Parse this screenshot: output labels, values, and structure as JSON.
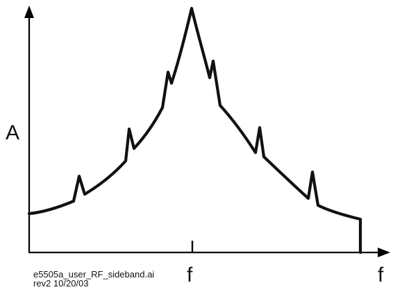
{
  "diagram": {
    "y_axis_label": "A",
    "center_tick_label": "f",
    "x_axis_label": "f",
    "caption": {
      "line1": "e5505a_user_RF_sideband.ai",
      "line2": "rev2 10/20/03"
    },
    "colors": {
      "curve": "#111111",
      "axis": "#000000",
      "background": "#ffffff"
    }
  }
}
